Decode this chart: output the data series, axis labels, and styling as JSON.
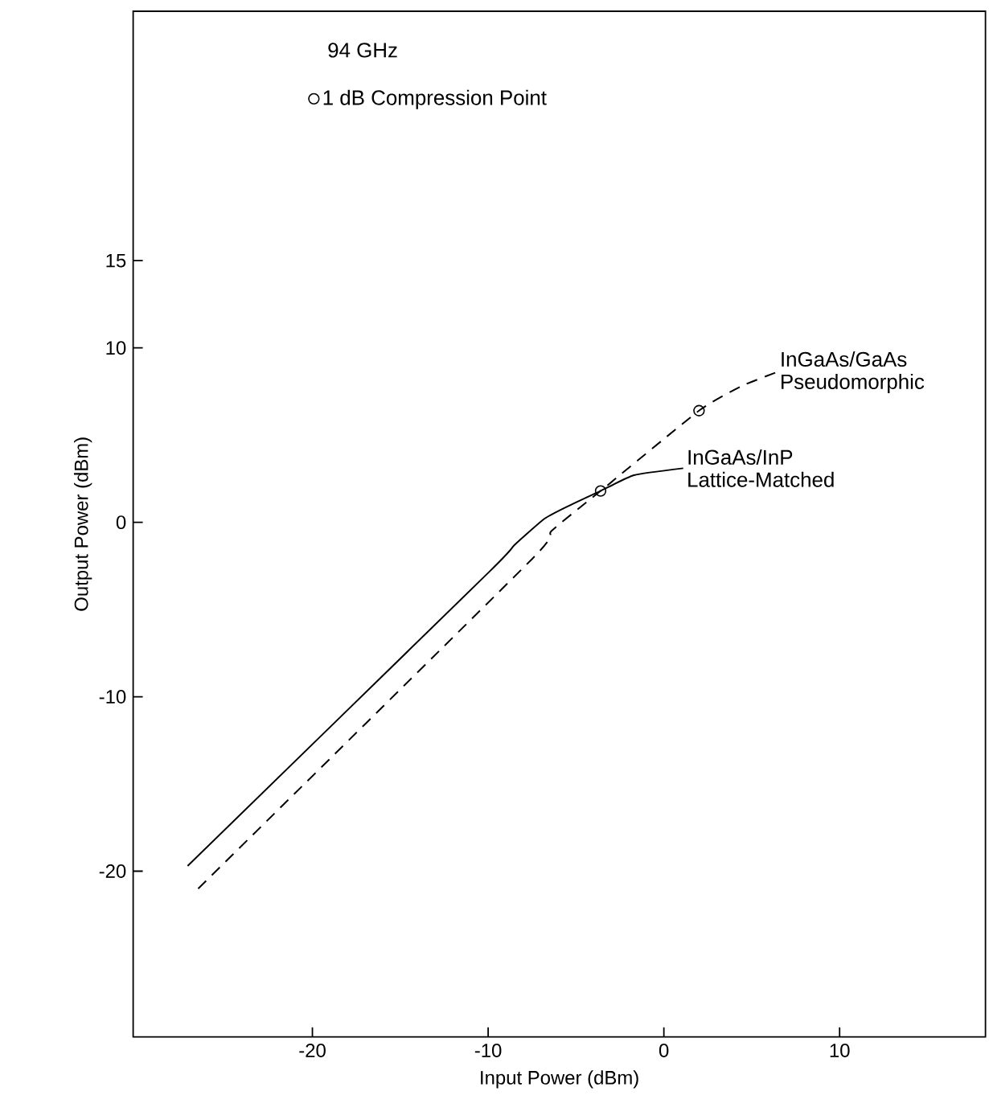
{
  "chart_data": {
    "type": "line",
    "xlabel": "Input Power (dBm)",
    "ylabel": "Output Power (dBm)",
    "annotations": [
      "94 GHz"
    ],
    "xlim": [
      -30.2,
      18.3
    ],
    "xticks": [
      -20,
      -10,
      0,
      10
    ],
    "ylim": [
      -29.5,
      29.3
    ],
    "yticks": [
      -20,
      -10,
      0,
      10,
      15
    ],
    "grid": false,
    "legend": "top left",
    "series": [
      {
        "name": "InGaAs/InP Lattice-Matched",
        "color": "#000000",
        "line_style": "solid",
        "marker": "none",
        "x": [
          -27.1,
          -9.9,
          -8.5,
          -6.8,
          -5.5,
          -3.6,
          -1.7,
          1.1
        ],
        "values": [
          -19.7,
          -2.8,
          -1.3,
          0.2,
          0.9,
          1.8,
          2.7,
          3.1
        ]
      },
      {
        "name": "InGaAs/GaAs Pseudomorphic",
        "color": "#000000",
        "line_style": "dashed",
        "marker": "none",
        "x": [
          -26.5,
          -7.5,
          -6.4,
          -3.6,
          2.0,
          4.4,
          6.4
        ],
        "values": [
          -21.0,
          -2.1,
          -0.5,
          1.8,
          6.4,
          7.8,
          8.6
        ]
      },
      {
        "name": "1 dB Compression Point",
        "type": "scatter",
        "color": "#000000",
        "marker": "circle",
        "x": [
          -3.6,
          2.0
        ],
        "values": [
          1.8,
          6.4
        ]
      }
    ]
  }
}
